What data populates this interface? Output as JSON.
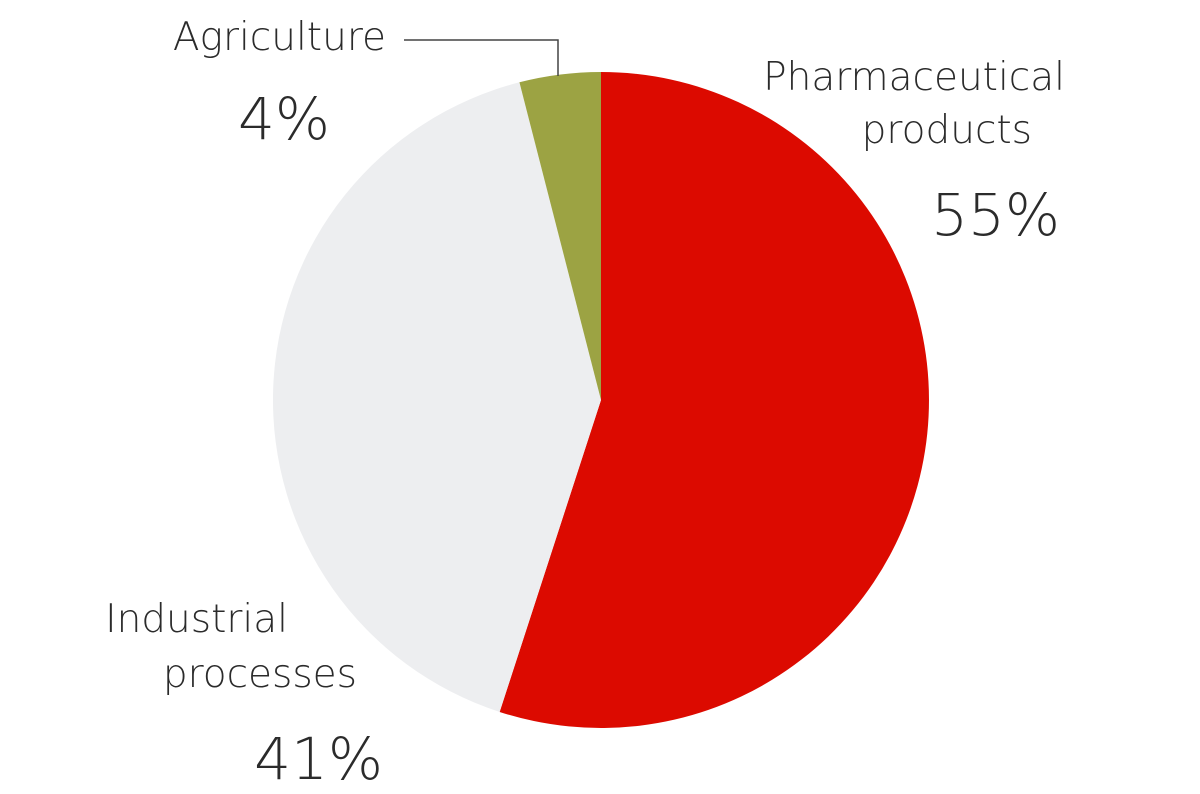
{
  "chart_data": {
    "type": "pie",
    "categories": [
      "Pharmaceutical products",
      "Industrial processes",
      "Agriculture"
    ],
    "values": [
      55,
      41,
      4
    ],
    "labels": {
      "pharma": {
        "line1": "Pharmaceutical",
        "line2": "products",
        "value": "55%"
      },
      "industrial": {
        "line1": "Industrial",
        "line2": "processes",
        "value": "41%"
      },
      "agriculture": {
        "line1": "Agriculture",
        "value": "4%"
      }
    },
    "colors": [
      "#dc0a00",
      "#edeef0",
      "#9ca343"
    ],
    "start_angle": "12 o'clock",
    "direction": "clockwise",
    "legend": "none"
  }
}
